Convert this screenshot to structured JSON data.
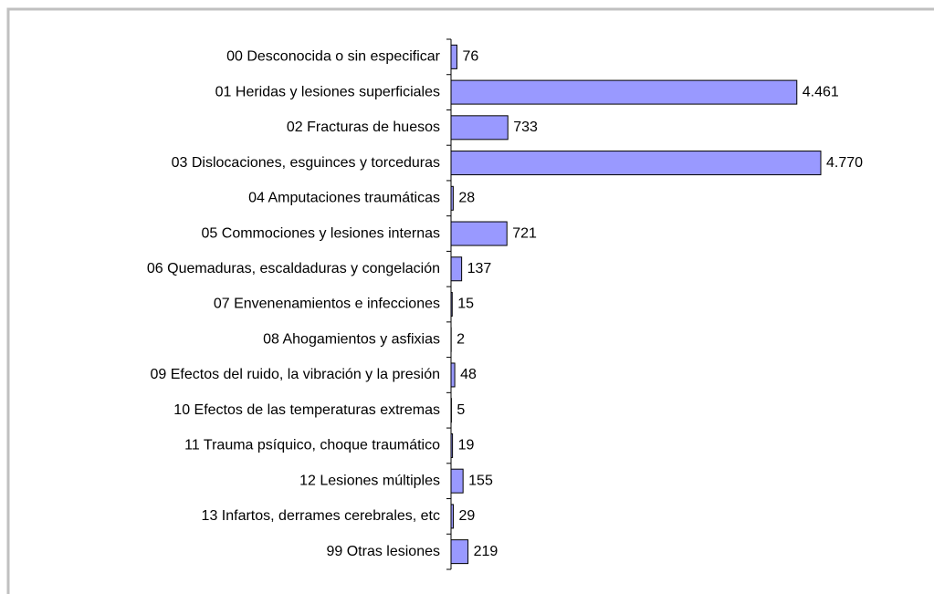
{
  "chart_data": {
    "type": "barh",
    "categories": [
      "00 Desconocida o sin especificar",
      "01 Heridas y lesiones superficiales",
      "02 Fracturas de huesos",
      "03 Dislocaciones, esguinces y torceduras",
      "04 Amputaciones traumáticas",
      "05 Commociones y lesiones internas",
      "06 Quemaduras, escaldaduras y congelación",
      "07 Envenenamientos e infecciones",
      "08 Ahogamientos y asfixias",
      "09 Efectos del ruido, la vibración y la presión",
      "10 Efectos de las temperaturas extremas",
      "11 Trauma psíquico, choque traumático",
      "12 Lesiones múltiples",
      "13 Infartos, derrames cerebrales, etc",
      "99 Otras lesiones"
    ],
    "values": [
      76,
      4461,
      733,
      4770,
      28,
      721,
      137,
      15,
      2,
      48,
      5,
      19,
      155,
      29,
      219
    ],
    "value_labels": [
      "76",
      "4.461",
      "733",
      "4.770",
      "28",
      "721",
      "137",
      "15",
      "2",
      "48",
      "5",
      "19",
      "155",
      "29",
      "219"
    ],
    "color": "#9999ff"
  }
}
